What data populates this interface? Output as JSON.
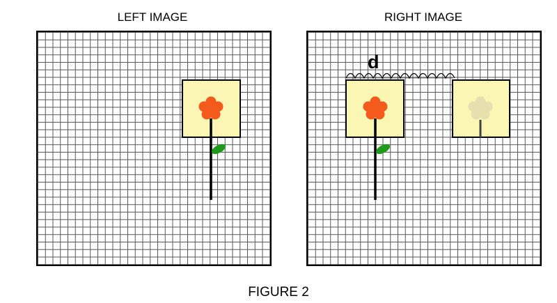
{
  "panels": {
    "left_title": "LEFT IMAGE",
    "right_title": "RIGHT IMAGE"
  },
  "annotation": {
    "distance_label": "d"
  },
  "caption": "FIGURE 2",
  "colors": {
    "grid_line": "#555555",
    "box_fill": "#fbf6b4",
    "petal": "#f35a1c",
    "stem": "#000000",
    "leaf": "#1f9a1a",
    "ghost_petal": "#e7dfae"
  }
}
